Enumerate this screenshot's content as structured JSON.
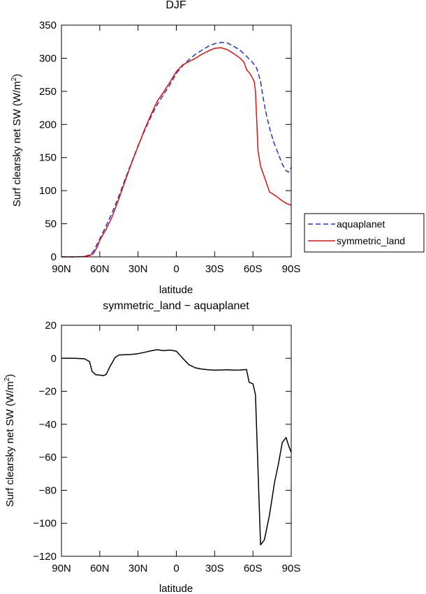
{
  "chart_data": [
    {
      "type": "line",
      "title": "DJF",
      "xlabel": "latitude",
      "ylabel_prefix": "Surf clearsky net SW (W/m",
      "ylabel_sup": "2",
      "ylabel_suffix": ")",
      "xlim": [
        90,
        -90
      ],
      "ylim": [
        0,
        350
      ],
      "x_ticks": [
        {
          "value": 90,
          "label": "90N"
        },
        {
          "value": 60,
          "label": "60N"
        },
        {
          "value": 30,
          "label": "30N"
        },
        {
          "value": 0,
          "label": "0"
        },
        {
          "value": -30,
          "label": "30S"
        },
        {
          "value": -60,
          "label": "60S"
        },
        {
          "value": -90,
          "label": "90S"
        }
      ],
      "y_ticks": [
        0,
        50,
        100,
        150,
        200,
        250,
        300,
        350
      ],
      "grid": false,
      "legend_position": "right",
      "series": [
        {
          "name": "aquaplanet",
          "color": "#1f33cc",
          "dash": "dashed",
          "points": [
            [
              90,
              0
            ],
            [
              80,
              0
            ],
            [
              72,
              0.5
            ],
            [
              68,
              3
            ],
            [
              65,
              8
            ],
            [
              60,
              27
            ],
            [
              55,
              47
            ],
            [
              50,
              68
            ],
            [
              45,
              92
            ],
            [
              40,
              118
            ],
            [
              35,
              143
            ],
            [
              30,
              168
            ],
            [
              25,
              190
            ],
            [
              20,
              211
            ],
            [
              15,
              230
            ],
            [
              10,
              245
            ],
            [
              5,
              260
            ],
            [
              0,
              277
            ],
            [
              -5,
              289
            ],
            [
              -10,
              298
            ],
            [
              -15,
              306
            ],
            [
              -20,
              312
            ],
            [
              -25,
              318
            ],
            [
              -30,
              322
            ],
            [
              -35,
              324
            ],
            [
              -40,
              323
            ],
            [
              -45,
              318
            ],
            [
              -50,
              312
            ],
            [
              -55,
              303
            ],
            [
              -60,
              293
            ],
            [
              -63,
              285
            ],
            [
              -66,
              265
            ],
            [
              -68,
              240
            ],
            [
              -70,
              220
            ],
            [
              -73,
              195
            ],
            [
              -76,
              175
            ],
            [
              -80,
              155
            ],
            [
              -83,
              140
            ],
            [
              -86,
              130
            ],
            [
              -88,
              128
            ],
            [
              -90,
              135
            ]
          ]
        },
        {
          "name": "symmetric_land",
          "color": "#e80f0f",
          "dash": "solid",
          "points": [
            [
              90,
              0
            ],
            [
              80,
              0
            ],
            [
              72,
              0.5
            ],
            [
              68,
              2
            ],
            [
              65,
              5
            ],
            [
              62,
              15
            ],
            [
              60,
              25
            ],
            [
              55,
              42
            ],
            [
              50,
              62
            ],
            [
              45,
              88
            ],
            [
              40,
              115
            ],
            [
              35,
              142
            ],
            [
              30,
              167
            ],
            [
              25,
              192
            ],
            [
              20,
              214
            ],
            [
              15,
              235
            ],
            [
              10,
              249
            ],
            [
              5,
              264
            ],
            [
              0,
              280
            ],
            [
              -5,
              290
            ],
            [
              -10,
              295
            ],
            [
              -15,
              300
            ],
            [
              -20,
              306
            ],
            [
              -25,
              311
            ],
            [
              -30,
              315
            ],
            [
              -35,
              316
            ],
            [
              -40,
              313
            ],
            [
              -45,
              307
            ],
            [
              -50,
              300
            ],
            [
              -53,
              294
            ],
            [
              -55,
              283
            ],
            [
              -58,
              276
            ],
            [
              -61,
              265
            ],
            [
              -62,
              250
            ],
            [
              -64,
              160
            ],
            [
              -66,
              137
            ],
            [
              -70,
              115
            ],
            [
              -73,
              98
            ],
            [
              -78,
              92
            ],
            [
              -82,
              86
            ],
            [
              -86,
              81
            ],
            [
              -90,
              78
            ]
          ]
        }
      ]
    },
    {
      "type": "line",
      "title": "symmetric_land − aquaplanet",
      "xlabel": "latitude",
      "ylabel_prefix": "Surf clearsky net SW (W/m",
      "ylabel_sup": "2",
      "ylabel_suffix": ")",
      "xlim": [
        90,
        -90
      ],
      "ylim": [
        -120,
        20
      ],
      "x_ticks": [
        {
          "value": 90,
          "label": "90N"
        },
        {
          "value": 60,
          "label": "60N"
        },
        {
          "value": 30,
          "label": "30N"
        },
        {
          "value": 0,
          "label": "0"
        },
        {
          "value": -30,
          "label": "30S"
        },
        {
          "value": -60,
          "label": "60S"
        },
        {
          "value": -90,
          "label": "90S"
        }
      ],
      "y_ticks": [
        20,
        0,
        -20,
        -40,
        -60,
        -80,
        -100,
        -120
      ],
      "grid": false,
      "series": [
        {
          "color": "#000000",
          "dash": "solid",
          "points": [
            [
              90,
              0
            ],
            [
              80,
              0
            ],
            [
              72,
              -0.3
            ],
            [
              68,
              -2
            ],
            [
              66,
              -8
            ],
            [
              63,
              -10
            ],
            [
              60,
              -10.2
            ],
            [
              57,
              -10.5
            ],
            [
              55,
              -9.8
            ],
            [
              52,
              -5
            ],
            [
              48,
              0.5
            ],
            [
              45,
              2
            ],
            [
              40,
              2.2
            ],
            [
              35,
              2.3
            ],
            [
              30,
              2.8
            ],
            [
              25,
              3.6
            ],
            [
              20,
              4.5
            ],
            [
              15,
              5.2
            ],
            [
              10,
              4.6
            ],
            [
              5,
              5
            ],
            [
              0,
              4.3
            ],
            [
              -5,
              0
            ],
            [
              -10,
              -4
            ],
            [
              -15,
              -5.8
            ],
            [
              -20,
              -6.5
            ],
            [
              -25,
              -7
            ],
            [
              -30,
              -7.2
            ],
            [
              -35,
              -7.1
            ],
            [
              -40,
              -7
            ],
            [
              -45,
              -7.2
            ],
            [
              -50,
              -7.1
            ],
            [
              -55,
              -6.8
            ],
            [
              -57,
              -14.5
            ],
            [
              -60,
              -15.5
            ],
            [
              -62,
              -22
            ],
            [
              -66,
              -113
            ],
            [
              -69,
              -110
            ],
            [
              -73,
              -95
            ],
            [
              -77,
              -75
            ],
            [
              -80,
              -64
            ],
            [
              -83,
              -51
            ],
            [
              -86,
              -48
            ],
            [
              -88,
              -53
            ],
            [
              -90,
              -57
            ]
          ]
        }
      ]
    }
  ]
}
